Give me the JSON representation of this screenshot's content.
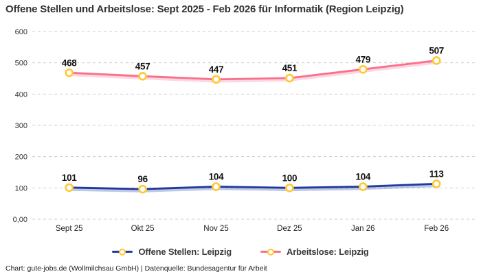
{
  "title": "Offene Stellen und Arbeitslose: Sept 2025 - Feb 2026 für Informatik (Region Leipzig)",
  "footer": "Chart: gute-jobs.de (Wollmilchsau GmbH) | Datenquelle: Bundesagentur für Arbeit",
  "colors": {
    "open_positions_line": "#1f3a9e",
    "unemployed_line": "#f8718c",
    "marker_ring": "#ffc832",
    "marker_fill": "#ffffff",
    "grid": "#cccccc",
    "value_label": "#111111",
    "axis_text": "#333333"
  },
  "chart_data": {
    "type": "line",
    "title": "Offene Stellen und Arbeitslose: Sept 2025 - Feb 2026 für Informatik (Region Leipzig)",
    "categories": [
      "Sept 25",
      "Okt 25",
      "Nov 25",
      "Dez 25",
      "Jan 26",
      "Feb 26"
    ],
    "series": [
      {
        "name": "Offene Stellen: Leipzig",
        "values": [
          101,
          96,
          104,
          100,
          104,
          113
        ],
        "color": "#1f3a9e"
      },
      {
        "name": "Arbeitslose: Leipzig",
        "values": [
          468,
          457,
          447,
          451,
          479,
          507
        ],
        "color": "#f8718c"
      }
    ],
    "ylim": [
      0,
      600
    ],
    "yticks": [
      0,
      100,
      200,
      300,
      400,
      500,
      600
    ],
    "ytick_labels": [
      "0,00",
      "100",
      "200",
      "300",
      "400",
      "500",
      "600"
    ],
    "grid": true,
    "grid_style": "dashed",
    "data_labels": true,
    "legend_position": "bottom",
    "xlabel": "",
    "ylabel": ""
  }
}
